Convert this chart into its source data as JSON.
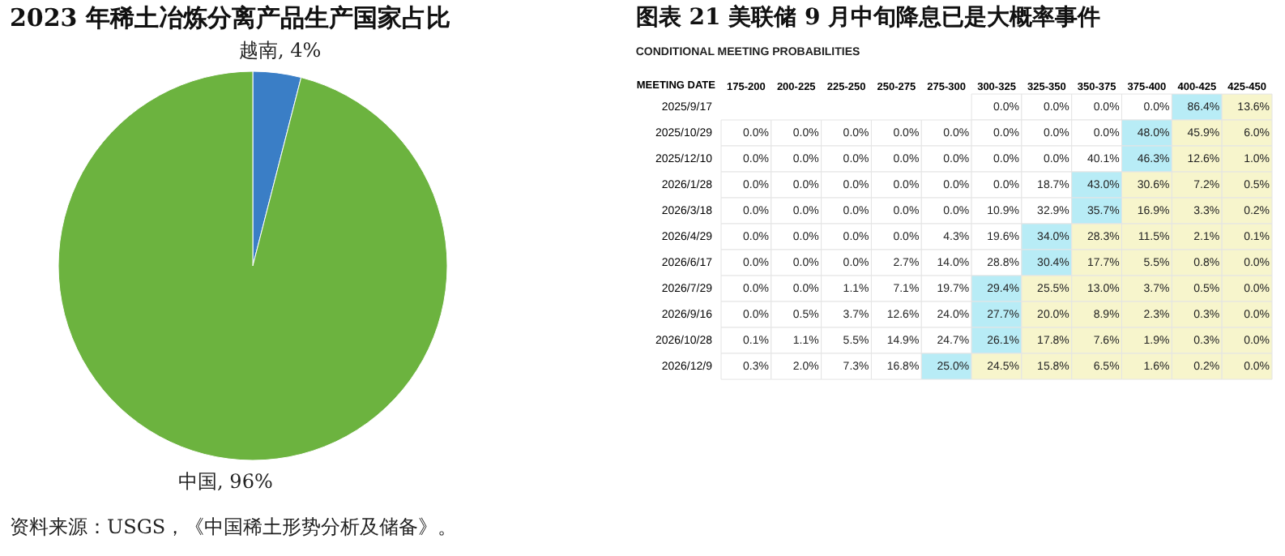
{
  "chart_data": [
    {
      "type": "pie",
      "title": "2023 年稀土冶炼分离产品生产国家占比",
      "categories": [
        "越南",
        "中国"
      ],
      "values": [
        4,
        96
      ],
      "colors": [
        "#3a7ec6",
        "#6cb33f"
      ],
      "value_labels": [
        "4%",
        "96%"
      ],
      "annotations": [
        "资料来源：USGS，《中国稀土形势分析及储备》。"
      ]
    },
    {
      "type": "heatmap",
      "title": "图表 21 美联储 9 月中旬降息已是大概率事件",
      "subtitle": "CONDITIONAL MEETING PROBABILITIES",
      "ylabel": "MEETING DATE",
      "categories": [
        "175-200",
        "200-225",
        "225-250",
        "250-275",
        "275-300",
        "300-325",
        "325-350",
        "350-375",
        "375-400",
        "400-425",
        "425-450"
      ],
      "y_categories": [
        "2025/9/17",
        "2025/10/29",
        "2025/12/10",
        "2026/1/28",
        "2026/3/18",
        "2026/4/29",
        "2026/6/17",
        "2026/7/29",
        "2026/9/16",
        "2026/10/28",
        "2026/12/9"
      ],
      "cells": [
        [
          null,
          null,
          null,
          null,
          null,
          0.0,
          0.0,
          0.0,
          0.0,
          86.4,
          13.6
        ],
        [
          0.0,
          0.0,
          0.0,
          0.0,
          0.0,
          0.0,
          0.0,
          0.0,
          48.0,
          45.9,
          6.0
        ],
        [
          0.0,
          0.0,
          0.0,
          0.0,
          0.0,
          0.0,
          0.0,
          40.1,
          46.3,
          12.6,
          1.0
        ],
        [
          0.0,
          0.0,
          0.0,
          0.0,
          0.0,
          0.0,
          18.7,
          43.0,
          30.6,
          7.2,
          0.5
        ],
        [
          0.0,
          0.0,
          0.0,
          0.0,
          0.0,
          10.9,
          32.9,
          35.7,
          16.9,
          3.3,
          0.2
        ],
        [
          0.0,
          0.0,
          0.0,
          0.0,
          4.3,
          19.6,
          34.0,
          28.3,
          11.5,
          2.1,
          0.1
        ],
        [
          0.0,
          0.0,
          0.0,
          2.7,
          14.0,
          28.8,
          30.4,
          17.7,
          5.5,
          0.8,
          0.0
        ],
        [
          0.0,
          0.0,
          1.1,
          7.1,
          19.7,
          29.4,
          25.5,
          13.0,
          3.7,
          0.5,
          0.0
        ],
        [
          0.0,
          0.5,
          3.7,
          12.6,
          24.0,
          27.7,
          20.0,
          8.9,
          2.3,
          0.3,
          0.0
        ],
        [
          0.1,
          1.1,
          5.5,
          14.9,
          24.7,
          26.1,
          17.8,
          7.6,
          1.9,
          0.3,
          0.0
        ],
        [
          0.3,
          2.0,
          7.3,
          16.8,
          25.0,
          24.5,
          15.8,
          6.5,
          1.6,
          0.2,
          0.0
        ]
      ],
      "cell_labels": [
        [
          null,
          null,
          null,
          null,
          null,
          "0.0%",
          "0.0%",
          "0.0%",
          "0.0%",
          "86.4%",
          "13.6%"
        ],
        [
          "0.0%",
          "0.0%",
          "0.0%",
          "0.0%",
          "0.0%",
          "0.0%",
          "0.0%",
          "0.0%",
          "48.0%",
          "45.9%",
          "6.0%"
        ],
        [
          "0.0%",
          "0.0%",
          "0.0%",
          "0.0%",
          "0.0%",
          "0.0%",
          "0.0%",
          "40.1%",
          "46.3%",
          "12.6%",
          "1.0%"
        ],
        [
          "0.0%",
          "0.0%",
          "0.0%",
          "0.0%",
          "0.0%",
          "0.0%",
          "18.7%",
          "43.0%",
          "30.6%",
          "7.2%",
          "0.5%"
        ],
        [
          "0.0%",
          "0.0%",
          "0.0%",
          "0.0%",
          "0.0%",
          "10.9%",
          "32.9%",
          "35.7%",
          "16.9%",
          "3.3%",
          "0.2%"
        ],
        [
          "0.0%",
          "0.0%",
          "0.0%",
          "0.0%",
          "4.3%",
          "19.6%",
          "34.0%",
          "28.3%",
          "11.5%",
          "2.1%",
          "0.1%"
        ],
        [
          "0.0%",
          "0.0%",
          "0.0%",
          "2.7%",
          "14.0%",
          "28.8%",
          "30.4%",
          "17.7%",
          "5.5%",
          "0.8%",
          "0.0%"
        ],
        [
          "0.0%",
          "0.0%",
          "1.1%",
          "7.1%",
          "19.7%",
          "29.4%",
          "25.5%",
          "13.0%",
          "3.7%",
          "0.5%",
          "0.0%"
        ],
        [
          "0.0%",
          "0.5%",
          "3.7%",
          "12.6%",
          "24.0%",
          "27.7%",
          "20.0%",
          "8.9%",
          "2.3%",
          "0.3%",
          "0.0%"
        ],
        [
          "0.1%",
          "1.1%",
          "5.5%",
          "14.9%",
          "24.7%",
          "26.1%",
          "17.8%",
          "7.6%",
          "1.9%",
          "0.3%",
          "0.0%"
        ],
        [
          "0.3%",
          "2.0%",
          "7.3%",
          "16.8%",
          "25.0%",
          "24.5%",
          "15.8%",
          "6.5%",
          "1.6%",
          "0.2%",
          "0.0%"
        ]
      ]
    }
  ]
}
